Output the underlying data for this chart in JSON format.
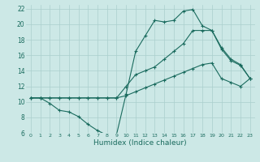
{
  "xlabel": "Humidex (Indice chaleur)",
  "bg_color": "#cce8e6",
  "grid_color": "#aacfcd",
  "line_color": "#1a6b5e",
  "xlim": [
    -0.5,
    23.5
  ],
  "ylim": [
    6,
    22.5
  ],
  "xticks": [
    0,
    1,
    2,
    3,
    4,
    5,
    6,
    7,
    8,
    9,
    10,
    11,
    12,
    13,
    14,
    15,
    16,
    17,
    18,
    19,
    20,
    21,
    22,
    23
  ],
  "yticks": [
    6,
    8,
    10,
    12,
    14,
    16,
    18,
    20,
    22
  ],
  "line1_x": [
    0,
    1,
    2,
    3,
    4,
    5,
    6,
    7,
    8,
    9,
    10,
    11,
    12,
    13,
    14,
    15,
    16,
    17,
    18,
    19,
    20,
    21,
    22,
    23
  ],
  "line1_y": [
    10.5,
    10.5,
    9.8,
    8.9,
    8.7,
    8.1,
    7.1,
    6.3,
    5.7,
    5.8,
    11.0,
    16.5,
    18.5,
    20.5,
    20.3,
    20.5,
    21.7,
    21.9,
    19.8,
    19.2,
    16.8,
    15.3,
    14.7,
    13.0
  ],
  "line2_x": [
    0,
    1,
    2,
    3,
    4,
    5,
    6,
    7,
    8,
    9,
    10,
    11,
    12,
    13,
    14,
    15,
    16,
    17,
    18,
    19,
    20,
    21,
    22,
    23
  ],
  "line2_y": [
    10.5,
    10.5,
    10.5,
    10.5,
    10.5,
    10.5,
    10.5,
    10.5,
    10.5,
    10.5,
    12.0,
    13.5,
    14.0,
    14.5,
    15.5,
    16.5,
    17.5,
    19.2,
    19.2,
    19.2,
    17.0,
    15.5,
    14.8,
    13.0
  ],
  "line3_x": [
    0,
    1,
    2,
    3,
    4,
    5,
    6,
    7,
    8,
    9,
    10,
    11,
    12,
    13,
    14,
    15,
    16,
    17,
    18,
    19,
    20,
    21,
    22,
    23
  ],
  "line3_y": [
    10.5,
    10.5,
    10.5,
    10.5,
    10.5,
    10.5,
    10.5,
    10.5,
    10.5,
    10.5,
    10.8,
    11.3,
    11.8,
    12.3,
    12.8,
    13.3,
    13.8,
    14.3,
    14.8,
    15.0,
    13.0,
    12.5,
    12.0,
    13.0
  ]
}
